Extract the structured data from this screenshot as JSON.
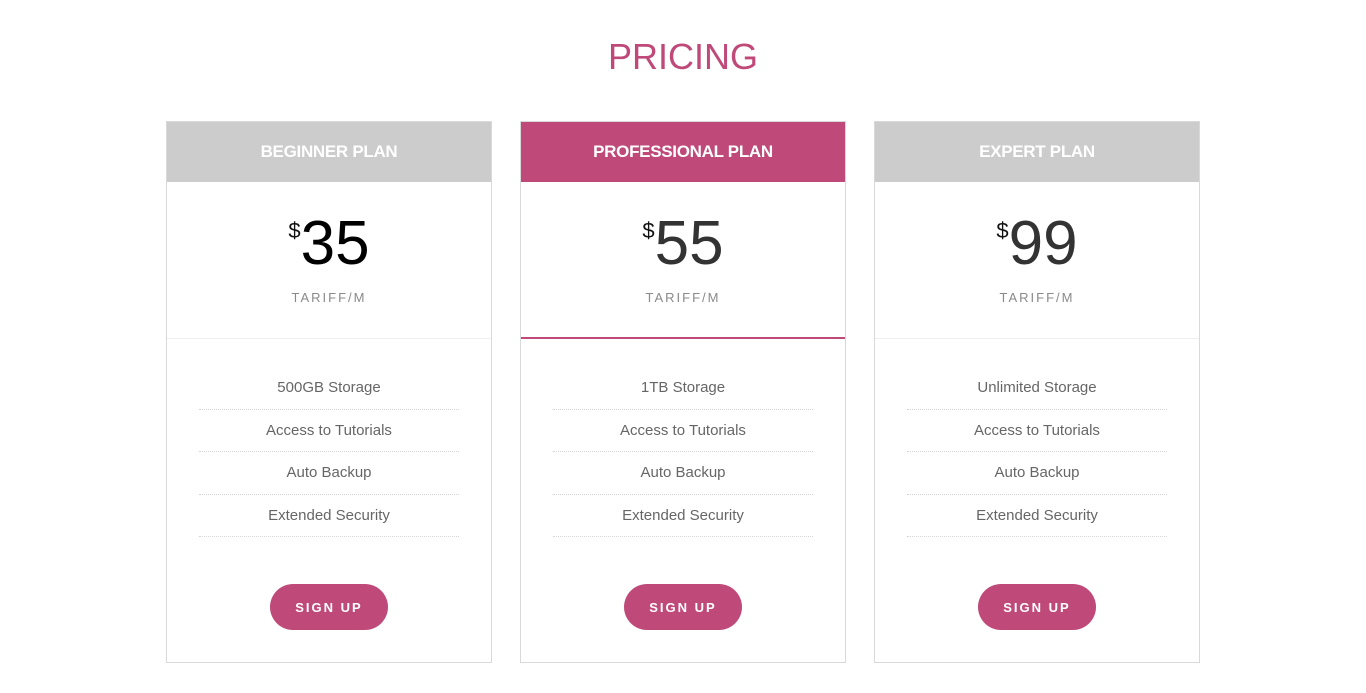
{
  "title": "PRICING",
  "plans": [
    {
      "name": "BEGINNER PLAN",
      "currency": "$",
      "price": "35",
      "period": "TARIFF/M",
      "features": [
        "500GB Storage",
        "Access to Tutorials",
        "Auto Backup",
        "Extended Security"
      ],
      "cta": "SIGN UP"
    },
    {
      "name": "PROFESSIONAL PLAN",
      "currency": "$",
      "price": "55",
      "period": "TARIFF/M",
      "features": [
        "1TB Storage",
        "Access to Tutorials",
        "Auto Backup",
        "Extended Security"
      ],
      "cta": "SIGN UP"
    },
    {
      "name": "EXPERT PLAN",
      "currency": "$",
      "price": "99",
      "period": "TARIFF/M",
      "features": [
        "Unlimited Storage",
        "Access to Tutorials",
        "Auto Backup",
        "Extended Security"
      ],
      "cta": "SIGN UP"
    }
  ],
  "colors": {
    "accent": "#bf4a79",
    "header_gray": "#cccccc"
  }
}
